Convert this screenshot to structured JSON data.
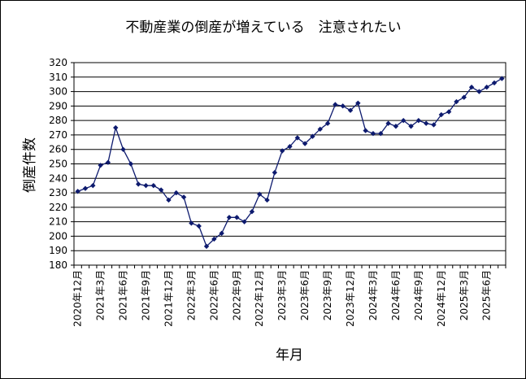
{
  "chart_data": {
    "type": "line",
    "title": "不動産業の倒産が増えている　注意されたい",
    "xlabel": "年月",
    "ylabel": "倒産件数",
    "ylim": [
      180,
      320
    ],
    "y_ticks": [
      320,
      310,
      300,
      290,
      280,
      270,
      260,
      250,
      240,
      230,
      220,
      210,
      200,
      190,
      180
    ],
    "x_tick_labels": [
      "2020年12月",
      "2021年3月",
      "2021年6月",
      "2021年9月",
      "2021年12月",
      "2022年3月",
      "2022年6月",
      "2022年9月",
      "2022年12月",
      "2023年3月",
      "2023年6月",
      "2023年9月",
      "2023年12月",
      "2024年3月",
      "2024年6月",
      "2024年9月",
      "2024年12月",
      "2025年3月",
      "2025年6月"
    ],
    "grid": "horizontal",
    "legend": "none",
    "series": [
      {
        "color": "#0d1a6e",
        "values": [
          231,
          233,
          235,
          249,
          251,
          275,
          260,
          250,
          236,
          235,
          235,
          232,
          225,
          230,
          227,
          209,
          207,
          193,
          198,
          202,
          213,
          213,
          210,
          217,
          229,
          225,
          244,
          259,
          262,
          268,
          264,
          269,
          274,
          278,
          291,
          290,
          287,
          292,
          273,
          271,
          271,
          278,
          276,
          280,
          276,
          280,
          278,
          277,
          284,
          286,
          293,
          296,
          303,
          300,
          303,
          306,
          309
        ]
      }
    ]
  }
}
